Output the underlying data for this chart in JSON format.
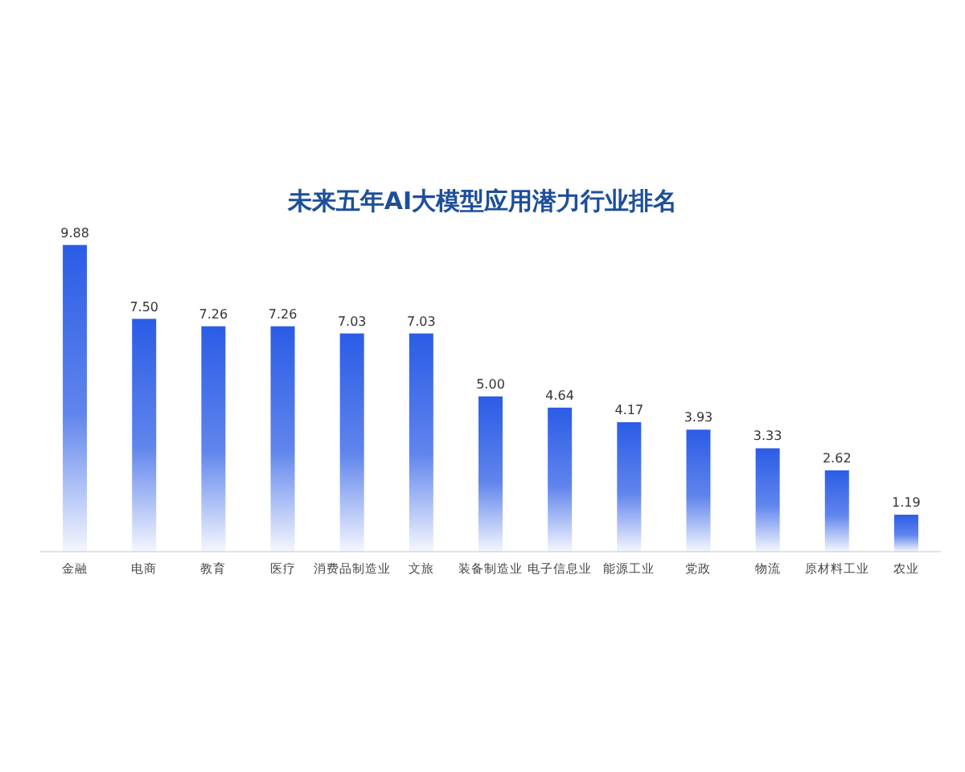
{
  "chart_data": {
    "type": "bar",
    "title": "未来五年AI大模型应用潜力行业排名",
    "categories": [
      "金融",
      "电商",
      "教育",
      "医疗",
      "消费品制造业",
      "文旅",
      "装备制造业",
      "电子信息业",
      "能源工业",
      "党政",
      "物流",
      "原材料工业",
      "农业"
    ],
    "values": [
      9.88,
      7.5,
      7.26,
      7.26,
      7.03,
      7.03,
      5.0,
      4.64,
      4.17,
      3.93,
      3.33,
      2.62,
      1.19
    ],
    "value_labels": [
      "9.88",
      "7.50",
      "7.26",
      "7.26",
      "7.03",
      "7.03",
      "5.00",
      "4.64",
      "4.17",
      "3.93",
      "3.33",
      "2.62",
      "1.19"
    ],
    "color": "#2b5ce6",
    "ylim": [
      0,
      10
    ]
  }
}
